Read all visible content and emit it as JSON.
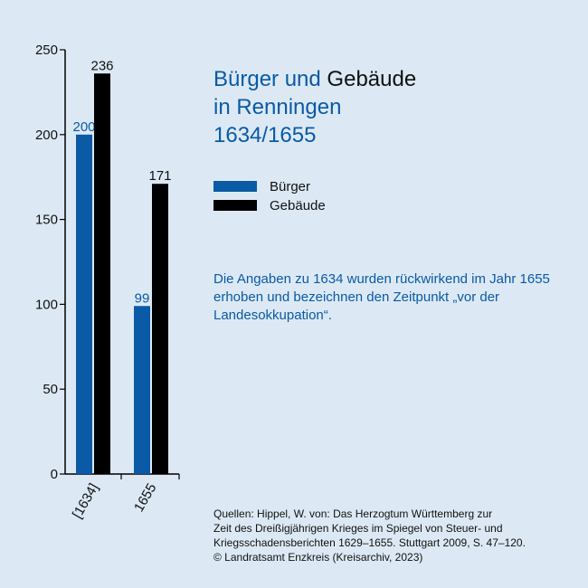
{
  "title": {
    "line1_a": "Bürger und",
    "line1_b": "Gebäude",
    "line2": "in Renningen",
    "line3": "1634/1655"
  },
  "legend": [
    {
      "label": "Bürger",
      "color": "#0a5aa6"
    },
    {
      "label": "Gebäude",
      "color": "#000000"
    }
  ],
  "note": "Die Angaben zu 1634 wurden rückwirkend im Jahr 1655 erhoben und bezeichnen den Zeitpunkt „vor der Landesokkupation“.",
  "sources": {
    "line1": "Quellen: Hippel, W. von: Das Herzogtum Württemberg zur",
    "line2": "Zeit des Dreißigjährigen Krieges im Spiegel von Steuer- und",
    "line3": "Kriegsschadensberichten 1629–1655. Stuttgart 2009, S. 47–120.",
    "line4": "© Landratsamt Enzkreis (Kreisarchiv, 2023)"
  },
  "chart_data": {
    "type": "bar",
    "categories": [
      "[1634]",
      "1655"
    ],
    "series": [
      {
        "name": "Bürger",
        "values": [
          200,
          99
        ],
        "color": "#0a5aa6"
      },
      {
        "name": "Gebäude",
        "values": [
          236,
          171
        ],
        "color": "#000000"
      }
    ],
    "ylim": [
      0,
      250
    ],
    "yticks": [
      0,
      50,
      100,
      150,
      200,
      250
    ],
    "grid": false,
    "legend_position": "right"
  }
}
